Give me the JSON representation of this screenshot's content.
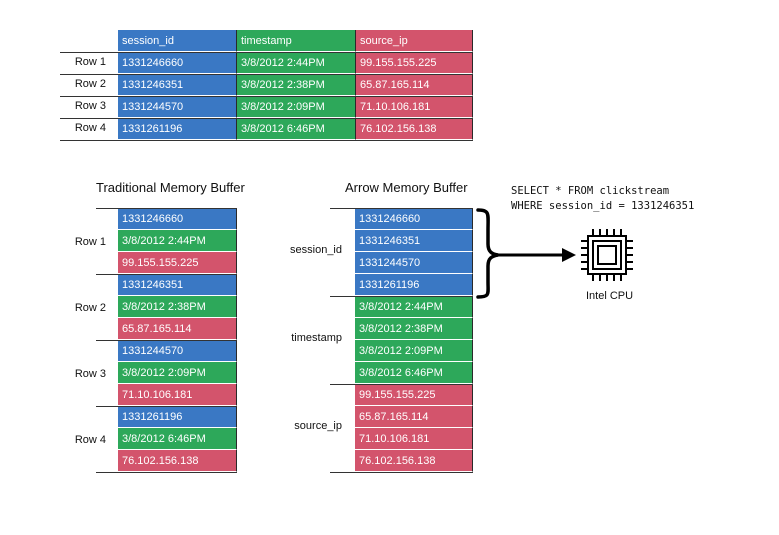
{
  "top_table": {
    "headers": [
      "session_id",
      "timestamp",
      "source_ip"
    ],
    "row_labels": [
      "Row 1",
      "Row 2",
      "Row 3",
      "Row 4"
    ],
    "rows": [
      [
        "1331246660",
        "3/8/2012 2:44PM",
        "99.155.155.225"
      ],
      [
        "1331246351",
        "3/8/2012 2:38PM",
        "65.87.165.114"
      ],
      [
        "1331244570",
        "3/8/2012 2:09PM",
        "71.10.106.181"
      ],
      [
        "1331261196",
        "3/8/2012 6:46PM",
        "76.102.156.138"
      ]
    ]
  },
  "traditional": {
    "title": "Traditional Memory Buffer",
    "row_labels": [
      "Row 1",
      "Row 2",
      "Row 3",
      "Row 4"
    ],
    "cells": [
      "1331246660",
      "3/8/2012 2:44PM",
      "99.155.155.225",
      "1331246351",
      "3/8/2012 2:38PM",
      "65.87.165.114",
      "1331244570",
      "3/8/2012 2:09PM",
      "71.10.106.181",
      "1331261196",
      "3/8/2012 6:46PM",
      "76.102.156.138"
    ]
  },
  "arrow": {
    "title": "Arrow Memory Buffer",
    "column_labels": [
      "session_id",
      "timestamp",
      "source_ip"
    ],
    "cells": [
      "1331246660",
      "1331246351",
      "1331244570",
      "1331261196",
      "3/8/2012 2:44PM",
      "3/8/2012 2:38PM",
      "3/8/2012 2:09PM",
      "3/8/2012 6:46PM",
      "99.155.155.225",
      "65.87.165.114",
      "71.10.106.181",
      "76.102.156.138"
    ]
  },
  "query": {
    "line1": "SELECT * FROM clickstream",
    "line2": "WHERE session_id = 1331246351"
  },
  "cpu": {
    "label": "Intel CPU",
    "icon": "cpu-chip-icon"
  },
  "colors": {
    "session_id": "#3a78c4",
    "timestamp": "#2da85a",
    "source_ip": "#d3546c"
  }
}
